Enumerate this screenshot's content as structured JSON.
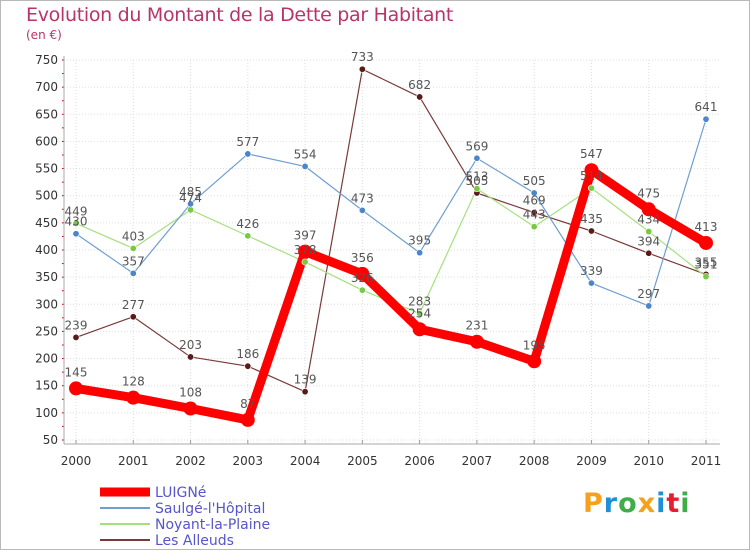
{
  "title": "Evolution du Montant de la Dette par Habitant",
  "subtitle": "(en €)",
  "brand": "Proxiti",
  "brand_colors": [
    "#f7a11a",
    "#1e90d6",
    "#3fae49",
    "#f7a11a",
    "#1e90d6",
    "#e5202e",
    "#3fae49"
  ],
  "chart_data": {
    "type": "line",
    "title": "Evolution du Montant de la Dette par Habitant",
    "subtitle": "(en €)",
    "x": [
      "2000",
      "2001",
      "2002",
      "2003",
      "2004",
      "2005",
      "2006",
      "2007",
      "2008",
      "2009",
      "2010",
      "2011"
    ],
    "ylim": [
      50,
      750
    ],
    "yticks": [
      50,
      100,
      150,
      200,
      250,
      300,
      350,
      400,
      450,
      500,
      550,
      600,
      650,
      700,
      750
    ],
    "grid": true,
    "legend_position": "bottom-left",
    "series": [
      {
        "name": "LUIGNé",
        "color": "#ff0000",
        "marker": "#ff0000",
        "values": [
          145,
          128,
          108,
          87,
          397,
          356,
          254,
          231,
          195,
          547,
          475,
          413
        ]
      },
      {
        "name": "Saulgé-l'Hôpital",
        "color": "#6f9ed0",
        "marker": "#4a86c8",
        "values": [
          430,
          357,
          485,
          577,
          554,
          473,
          395,
          569,
          505,
          339,
          297,
          641
        ]
      },
      {
        "name": "Noyant-la-Plaine",
        "color": "#a6e07e",
        "marker": "#78c944",
        "values": [
          449,
          403,
          474,
          426,
          378,
          326,
          283,
          513,
          443,
          514,
          434,
          351
        ]
      },
      {
        "name": "Les Alleuds",
        "color": "#7a3a3a",
        "marker": "#5a1a1a",
        "values": [
          239,
          277,
          203,
          186,
          139,
          733,
          682,
          505,
          469,
          435,
          394,
          355
        ]
      }
    ],
    "data_labels": [
      [
        "145",
        "128",
        "108",
        "87",
        "397",
        "356",
        "254",
        "231",
        "195",
        "547",
        "475",
        "413"
      ],
      [
        "430",
        "357",
        "485",
        "577",
        "554",
        "473",
        "395",
        "569",
        "505",
        "339",
        "297",
        "641"
      ],
      [
        "449",
        "403",
        "474",
        "426",
        "378",
        "326",
        "283",
        "513",
        "443",
        "514",
        "434",
        "351"
      ],
      [
        "239",
        "277",
        "203",
        "186",
        "139",
        "733",
        "682",
        "505",
        "469",
        "435",
        "394",
        "355"
      ]
    ]
  }
}
